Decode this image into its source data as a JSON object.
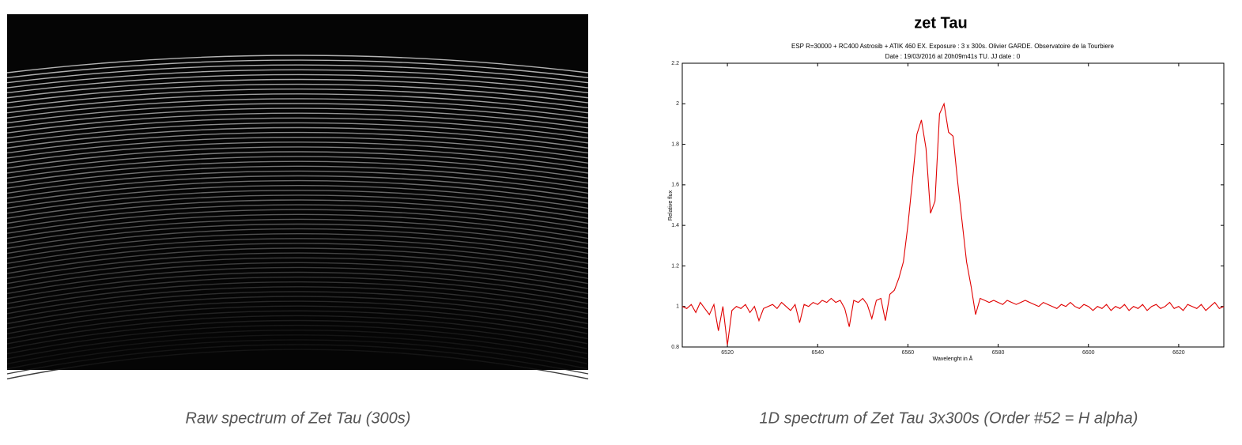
{
  "chart_data": {
    "type": "line",
    "title": "zet Tau",
    "subtitle": [
      "ESP R=30000 + RC400 Astrosib + ATIK 460 EX. Exposure : 3 x 300s. Olivier GARDE. Observatoire de la Tourbiere",
      "Date : 19/03/2016 at 20h09m41s TU. JJ date : 0"
    ],
    "xlabel": "Wavelenght in Å",
    "ylabel": "Relative flux",
    "color": "#e00000",
    "xlim": [
      6510,
      6630
    ],
    "ylim": [
      0.8,
      2.2
    ],
    "xticks": [
      6520,
      6540,
      6560,
      6580,
      6600,
      6620
    ],
    "yticks": [
      0.8,
      1,
      1.2,
      1.4,
      1.6,
      1.8,
      2,
      2.2
    ],
    "x": [
      6510,
      6511,
      6512,
      6513,
      6514,
      6515,
      6516,
      6517,
      6518,
      6519,
      6520,
      6521,
      6522,
      6523,
      6524,
      6525,
      6526,
      6527,
      6528,
      6529,
      6530,
      6531,
      6532,
      6533,
      6534,
      6535,
      6536,
      6537,
      6538,
      6539,
      6540,
      6541,
      6542,
      6543,
      6544,
      6545,
      6546,
      6547,
      6548,
      6549,
      6550,
      6551,
      6552,
      6553,
      6554,
      6555,
      6556,
      6557,
      6558,
      6559,
      6560,
      6561,
      6562,
      6563,
      6564,
      6565,
      6566,
      6567,
      6568,
      6569,
      6570,
      6571,
      6572,
      6573,
      6574,
      6575,
      6576,
      6577,
      6578,
      6579,
      6580,
      6581,
      6582,
      6583,
      6584,
      6585,
      6586,
      6587,
      6588,
      6589,
      6590,
      6591,
      6592,
      6593,
      6594,
      6595,
      6596,
      6597,
      6598,
      6599,
      6600,
      6601,
      6602,
      6603,
      6604,
      6605,
      6606,
      6607,
      6608,
      6609,
      6610,
      6611,
      6612,
      6613,
      6614,
      6615,
      6616,
      6617,
      6618,
      6619,
      6620,
      6621,
      6622,
      6623,
      6624,
      6625,
      6626,
      6627,
      6628,
      6629,
      6630
    ],
    "values": [
      1.0,
      0.99,
      1.01,
      0.97,
      1.02,
      0.99,
      0.96,
      1.01,
      0.88,
      1.0,
      0.81,
      0.98,
      1.0,
      0.99,
      1.01,
      0.97,
      1.0,
      0.93,
      0.99,
      1.0,
      1.01,
      0.99,
      1.02,
      1.0,
      0.98,
      1.01,
      0.92,
      1.01,
      1.0,
      1.02,
      1.01,
      1.03,
      1.02,
      1.04,
      1.02,
      1.03,
      0.99,
      0.9,
      1.03,
      1.02,
      1.04,
      1.01,
      0.94,
      1.03,
      1.04,
      0.93,
      1.06,
      1.08,
      1.14,
      1.22,
      1.4,
      1.62,
      1.85,
      1.92,
      1.78,
      1.46,
      1.52,
      1.95,
      2.0,
      1.86,
      1.84,
      1.62,
      1.42,
      1.22,
      1.1,
      0.96,
      1.04,
      1.03,
      1.02,
      1.03,
      1.02,
      1.01,
      1.03,
      1.02,
      1.01,
      1.02,
      1.03,
      1.02,
      1.01,
      1.0,
      1.02,
      1.01,
      1.0,
      0.99,
      1.01,
      1.0,
      1.02,
      1.0,
      0.99,
      1.01,
      1.0,
      0.98,
      1.0,
      0.99,
      1.01,
      0.98,
      1.0,
      0.99,
      1.01,
      0.98,
      1.0,
      0.99,
      1.01,
      0.98,
      1.0,
      1.01,
      0.99,
      1.0,
      1.02,
      0.99,
      1.0,
      0.98,
      1.01,
      1.0,
      0.99,
      1.01,
      0.98,
      1.0,
      1.02,
      0.99,
      1.0
    ]
  },
  "figures": [
    {
      "caption": "Raw spectrum of Zet Tau (300s)"
    },
    {
      "caption": "1D spectrum of Zet Tau 3x300s (Order #52 = H alpha)"
    }
  ]
}
